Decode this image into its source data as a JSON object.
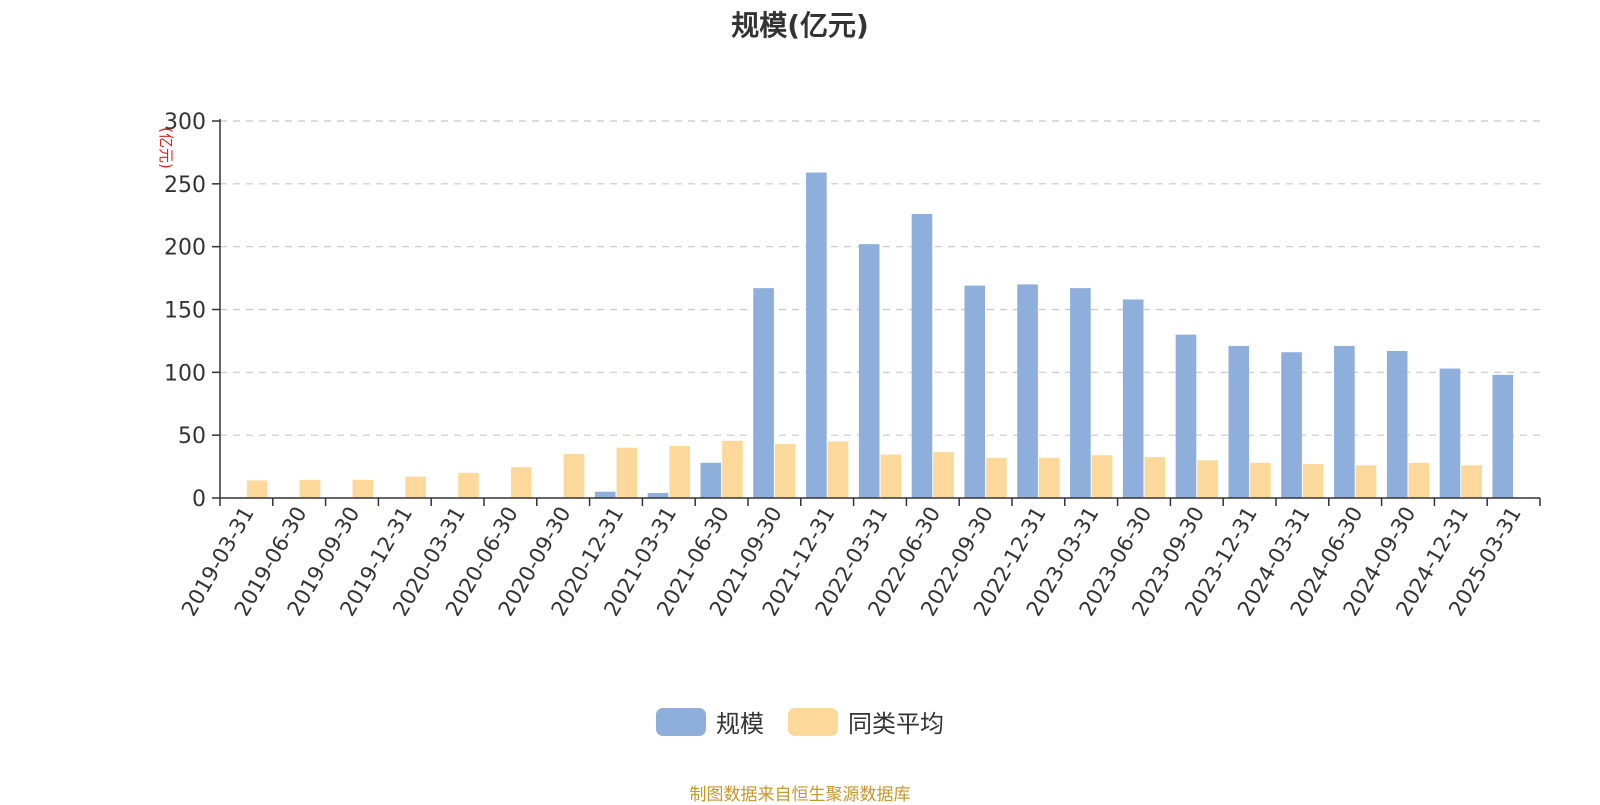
{
  "chart_data": {
    "type": "bar",
    "title": "规模(亿元)",
    "ylabel": "(亿元)",
    "xlabel": "",
    "ylim": [
      0,
      300
    ],
    "yticks": [
      0,
      50,
      100,
      150,
      200,
      250,
      300
    ],
    "grid": true,
    "legend_position": "bottom",
    "categories": [
      "2019-03-31",
      "2019-06-30",
      "2019-09-30",
      "2019-12-31",
      "2020-03-31",
      "2020-06-30",
      "2020-09-30",
      "2020-12-31",
      "2021-03-31",
      "2021-06-30",
      "2021-09-30",
      "2021-12-31",
      "2022-03-31",
      "2022-06-30",
      "2022-09-30",
      "2022-12-31",
      "2023-03-31",
      "2023-06-30",
      "2023-09-30",
      "2023-12-31",
      "2024-03-31",
      "2024-06-30",
      "2024-09-30",
      "2024-12-31",
      "2025-03-31"
    ],
    "series": [
      {
        "name": "规模",
        "color": "#8eaedb",
        "values": [
          0.5,
          0.5,
          0,
          0,
          0,
          0,
          0,
          5,
          4,
          28,
          167,
          259,
          202,
          226,
          169,
          170,
          167,
          158,
          130,
          121,
          116,
          121,
          117,
          103,
          98
        ]
      },
      {
        "name": "同类平均",
        "color": "#fdd89b",
        "values": [
          14,
          14.5,
          14.5,
          17,
          20,
          24.5,
          35,
          40,
          41.5,
          45.5,
          43,
          45,
          34.5,
          36.5,
          32,
          32,
          34,
          32.5,
          30,
          28,
          27,
          26,
          28,
          26,
          null
        ]
      }
    ]
  },
  "footer": {
    "source": "制图数据来自恒生聚源数据库"
  }
}
